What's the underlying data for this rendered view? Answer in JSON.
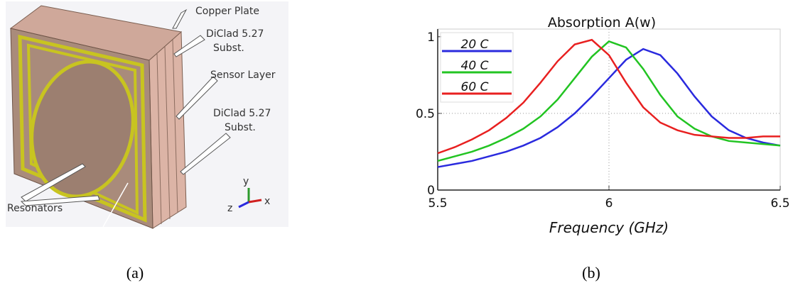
{
  "diagram": {
    "labels": [
      "Copper Plate",
      [
        "DiClad 5.27",
        "Subst."
      ],
      "Sensor Layer",
      [
        "DiClad 5.27",
        "Subst."
      ],
      "Resonators"
    ],
    "axes": [
      "y",
      "z",
      "x"
    ]
  },
  "captions": [
    "(a)",
    "(b)"
  ],
  "chart_data": {
    "type": "line",
    "title": "Absorption A(w)",
    "xlabel": "Frequency (GHz)",
    "x": [
      5.5,
      5.55,
      5.6,
      5.65,
      5.7,
      5.75,
      5.8,
      5.85,
      5.9,
      5.95,
      6.0,
      6.05,
      6.1,
      6.15,
      6.2,
      6.25,
      6.3,
      6.35,
      6.4,
      6.45,
      6.5
    ],
    "series": [
      {
        "name": "20 C",
        "color": "#2a2ade",
        "values": [
          0.15,
          0.17,
          0.19,
          0.22,
          0.25,
          0.29,
          0.34,
          0.41,
          0.5,
          0.61,
          0.73,
          0.85,
          0.92,
          0.88,
          0.76,
          0.61,
          0.48,
          0.39,
          0.34,
          0.31,
          0.29
        ]
      },
      {
        "name": "40 C",
        "color": "#22c422",
        "values": [
          0.19,
          0.22,
          0.25,
          0.29,
          0.34,
          0.4,
          0.48,
          0.59,
          0.73,
          0.87,
          0.97,
          0.93,
          0.79,
          0.62,
          0.48,
          0.4,
          0.35,
          0.32,
          0.31,
          0.3,
          0.29
        ]
      },
      {
        "name": "60 C",
        "color": "#e82020",
        "values": [
          0.24,
          0.28,
          0.33,
          0.39,
          0.47,
          0.57,
          0.7,
          0.84,
          0.95,
          0.98,
          0.88,
          0.7,
          0.54,
          0.44,
          0.39,
          0.36,
          0.35,
          0.34,
          0.34,
          0.35,
          0.35
        ]
      }
    ],
    "xlim": [
      5.5,
      6.5
    ],
    "ylim": [
      0,
      1.05
    ],
    "xticks": [
      5.5,
      6,
      6.5
    ],
    "yticks": [
      0,
      0.5,
      1
    ],
    "grid": true
  }
}
